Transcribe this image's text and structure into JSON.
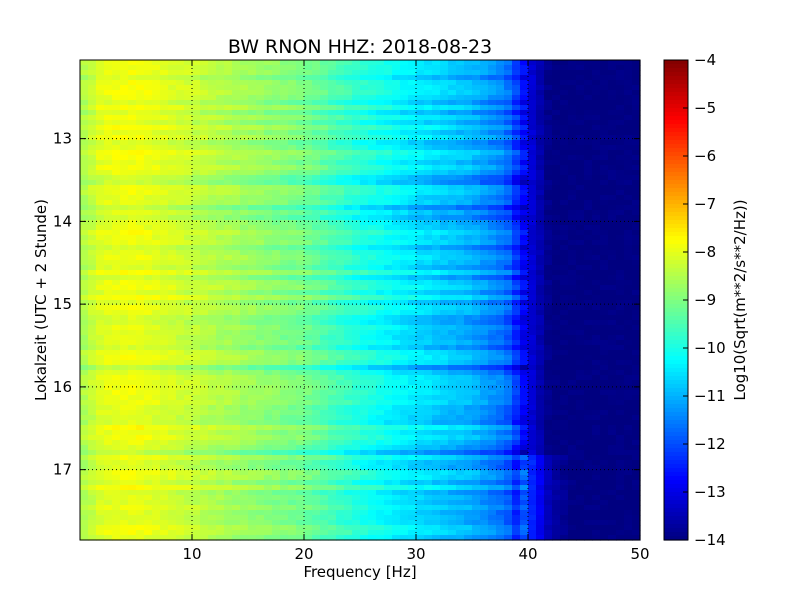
{
  "chart_data": {
    "type": "heatmap",
    "title": "BW RNON HHZ: 2018-08-23",
    "xlabel": "Frequency [Hz]",
    "ylabel": "Lokalzeit (UTC + 2 Stunde)",
    "xlim": [
      0,
      50
    ],
    "ylim": [
      12.05,
      17.85
    ],
    "y_inverted": true,
    "xticks": [
      10,
      20,
      30,
      40,
      50
    ],
    "xtick_labels": [
      "10",
      "20",
      "30",
      "40",
      "50"
    ],
    "yticks": [
      13,
      14,
      15,
      16,
      17
    ],
    "ytick_labels": [
      "13",
      "14",
      "15",
      "16",
      "17"
    ],
    "grid": true,
    "colormap": "jet",
    "colorbar": {
      "label": "Log10(Sqrt(m**2/s**2/Hz))",
      "range": [
        -14,
        -4
      ],
      "ticks": [
        -4,
        -5,
        -6,
        -7,
        -8,
        -9,
        -10,
        -11,
        -12,
        -13,
        -14
      ],
      "tick_labels": [
        "−4",
        "−5",
        "−6",
        "−7",
        "−8",
        "−9",
        "−10",
        "−11",
        "−12",
        "−13",
        "−14"
      ]
    },
    "spectrum_profile": {
      "frequency": [
        0,
        2,
        5,
        10,
        15,
        20,
        25,
        30,
        35,
        38,
        40,
        42,
        50
      ],
      "value": [
        -8.6,
        -8.0,
        -7.9,
        -8.3,
        -8.7,
        -9.1,
        -9.9,
        -10.5,
        -11.0,
        -11.6,
        -13.0,
        -14.0,
        -14.0
      ]
    }
  }
}
